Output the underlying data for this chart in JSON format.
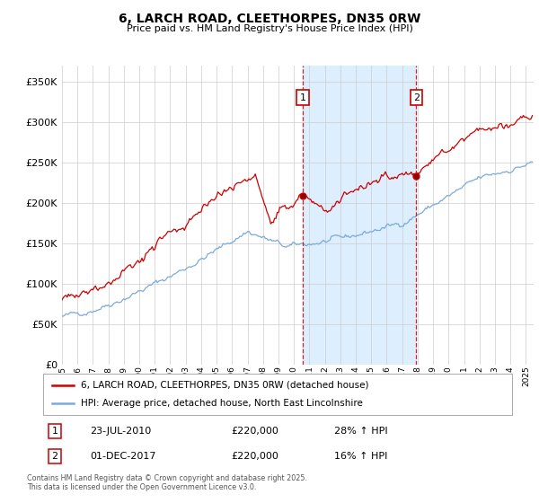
{
  "title1": "6, LARCH ROAD, CLEETHORPES, DN35 0RW",
  "title2": "Price paid vs. HM Land Registry's House Price Index (HPI)",
  "ylim": [
    0,
    370000
  ],
  "yticks": [
    0,
    50000,
    100000,
    150000,
    200000,
    250000,
    300000,
    350000
  ],
  "annotation1": {
    "label": "1",
    "date": "23-JUL-2010",
    "price": "£220,000",
    "hpi": "28% ↑ HPI"
  },
  "annotation2": {
    "label": "2",
    "date": "01-DEC-2017",
    "price": "£220,000",
    "hpi": "16% ↑ HPI"
  },
  "legend_line1": "6, LARCH ROAD, CLEETHORPES, DN35 0RW (detached house)",
  "legend_line2": "HPI: Average price, detached house, North East Lincolnshire",
  "footer": "Contains HM Land Registry data © Crown copyright and database right 2025.\nThis data is licensed under the Open Government Licence v3.0.",
  "red_color": "#cc0000",
  "blue_color": "#7aaadd",
  "shade_color": "#ddeeff",
  "bg_color": "#ffffff",
  "grid_color": "#cccccc",
  "sale1_year": 2010.583,
  "sale2_year": 2017.917,
  "sale1_price": 220000,
  "sale2_price": 220000
}
